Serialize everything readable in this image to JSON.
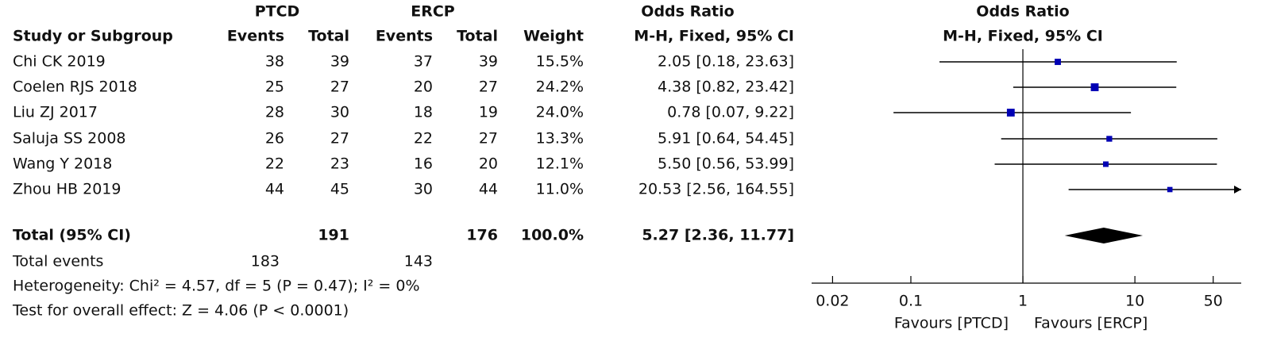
{
  "chart_data": {
    "type": "forest",
    "groups": [
      "PTCD",
      "ERCP",
      "Odds Ratio",
      "Odds Ratio"
    ],
    "columns": [
      "Study or Subgroup",
      "Events",
      "Total",
      "Events",
      "Total",
      "Weight",
      "M-H, Fixed, 95% CI",
      "M-H, Fixed, 95% CI"
    ],
    "studies": [
      {
        "name": "Chi CK 2019",
        "ptcd_events": 38,
        "ptcd_total": 39,
        "ercp_events": 37,
        "ercp_total": 39,
        "weight": 15.5,
        "weight_label": "15.5%",
        "or": 2.05,
        "ci_low": 0.18,
        "ci_high": 23.63,
        "ci_label": "2.05 [0.18, 23.63]"
      },
      {
        "name": "Coelen RJS 2018",
        "ptcd_events": 25,
        "ptcd_total": 27,
        "ercp_events": 20,
        "ercp_total": 27,
        "weight": 24.2,
        "weight_label": "24.2%",
        "or": 4.38,
        "ci_low": 0.82,
        "ci_high": 23.42,
        "ci_label": "4.38 [0.82, 23.42]"
      },
      {
        "name": "Liu ZJ 2017",
        "ptcd_events": 28,
        "ptcd_total": 30,
        "ercp_events": 18,
        "ercp_total": 19,
        "weight": 24.0,
        "weight_label": "24.0%",
        "or": 0.78,
        "ci_low": 0.07,
        "ci_high": 9.22,
        "ci_label": "0.78 [0.07, 9.22]"
      },
      {
        "name": "Saluja SS 2008",
        "ptcd_events": 26,
        "ptcd_total": 27,
        "ercp_events": 22,
        "ercp_total": 27,
        "weight": 13.3,
        "weight_label": "13.3%",
        "or": 5.91,
        "ci_low": 0.64,
        "ci_high": 54.45,
        "ci_label": "5.91 [0.64, 54.45]"
      },
      {
        "name": "Wang Y 2018",
        "ptcd_events": 22,
        "ptcd_total": 23,
        "ercp_events": 16,
        "ercp_total": 20,
        "weight": 12.1,
        "weight_label": "12.1%",
        "or": 5.5,
        "ci_low": 0.56,
        "ci_high": 53.99,
        "ci_label": "5.50 [0.56, 53.99]"
      },
      {
        "name": "Zhou HB 2019",
        "ptcd_events": 44,
        "ptcd_total": 45,
        "ercp_events": 30,
        "ercp_total": 44,
        "weight": 11.0,
        "weight_label": "11.0%",
        "or": 20.53,
        "ci_low": 2.56,
        "ci_high": 164.55,
        "ci_label": "20.53 [2.56, 164.55]"
      }
    ],
    "total": {
      "label": "Total (95% CI)",
      "ptcd_total": 191,
      "ercp_total": 176,
      "weight_label": "100.0%",
      "or": 5.27,
      "ci_low": 2.36,
      "ci_high": 11.77,
      "ci_label": "5.27 [2.36, 11.77]"
    },
    "total_events": {
      "label": "Total events",
      "ptcd": 183,
      "ercp": 143
    },
    "heterogeneity": "Heterogeneity: Chi² = 4.57, df = 5 (P = 0.47); I² = 0%",
    "overall_effect": "Test for overall effect: Z = 4.06 (P < 0.0001)",
    "xscale": "log",
    "xlim": [
      0.013,
      89
    ],
    "xticks": [
      0.02,
      0.1,
      1,
      10,
      50
    ],
    "reference_line": 1,
    "favours_left": "Favours [PTCD]",
    "favours_right": "Favours [ERCP]",
    "marker_color": "#0000b4"
  }
}
